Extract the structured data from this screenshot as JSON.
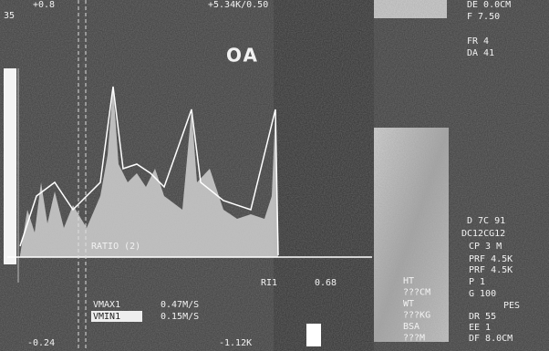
{
  "overlay": {
    "top_left_scale": "+0.8",
    "top_left_depth": "35",
    "top_scale": "+5.34K/0.50",
    "probe": [
      "DE  0.0CM",
      "F  7.50",
      "FR  4",
      "DA  41"
    ],
    "vessel": "OA",
    "ratio": "RATIO (2)",
    "ri": {
      "label": "RI1",
      "value": "0.68"
    },
    "vmax": {
      "label": "VMAX1",
      "value": "0.47M/S"
    },
    "vmin": {
      "label": "VMIN1",
      "value": "0.15M/S"
    },
    "bottom_left_scale": "-0.24",
    "bottom_scale": "-1.12K",
    "settings": [
      "D  7C 91",
      "DC12CG12",
      "CP 3  M",
      "PRF 4.5K",
      "PRF 4.5K",
      "P 1",
      "G  100",
      "PES",
      "DR  55",
      "EE  1",
      "DF  8.0CM"
    ],
    "patient": [
      "HT",
      "???CM",
      "WT",
      "???KG",
      "BSA",
      "???M"
    ]
  }
}
